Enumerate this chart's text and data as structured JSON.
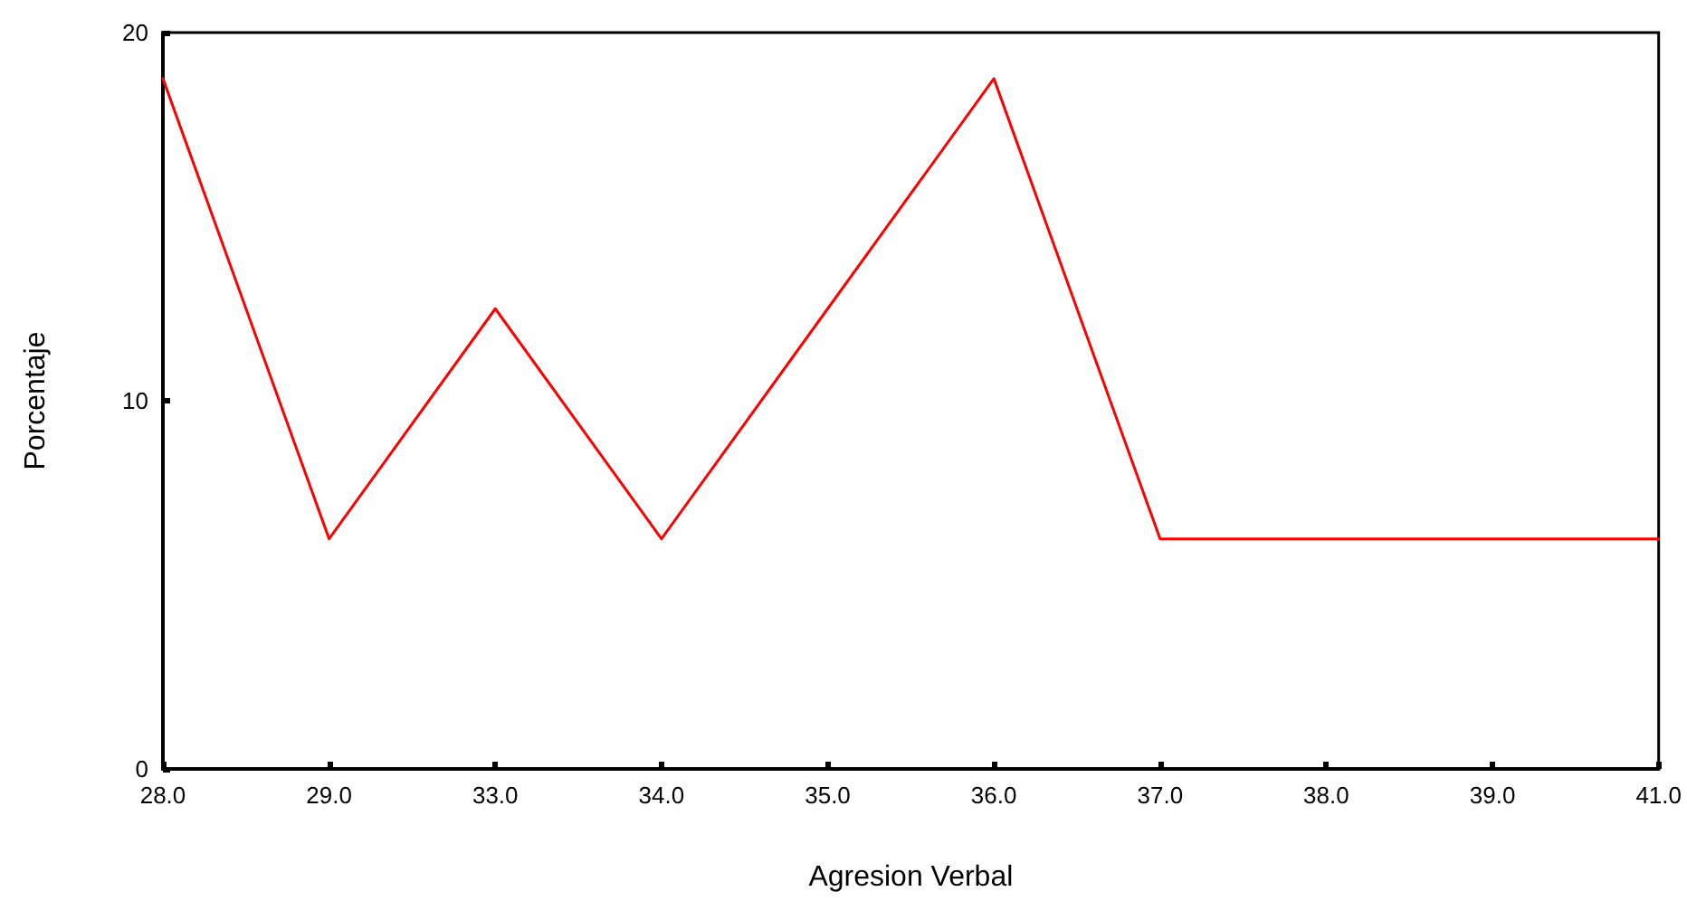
{
  "chart_data": {
    "type": "line",
    "xlabel": "Agresion Verbal",
    "ylabel": "Porcentaje",
    "categories": [
      "28.0",
      "29.0",
      "33.0",
      "34.0",
      "35.0",
      "36.0",
      "37.0",
      "38.0",
      "39.0",
      "41.0"
    ],
    "series": [
      {
        "color": "#ff0000",
        "values": [
          18.75,
          6.25,
          12.5,
          6.25,
          12.5,
          18.75,
          6.25,
          6.25,
          6.25,
          6.25
        ]
      }
    ],
    "ylim": [
      0,
      20
    ],
    "yticks": [
      0,
      10,
      20
    ],
    "grid": false,
    "marker": "none",
    "line_style": "solid"
  }
}
